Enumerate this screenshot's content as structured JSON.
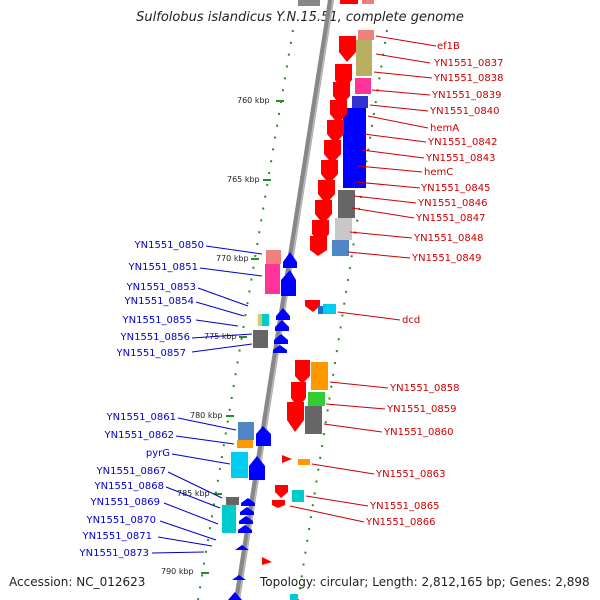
{
  "title": "Sulfolobus islandicus Y.N.15.51, complete genome",
  "footer": {
    "accession": "Accession: NC_012623",
    "topology": "Topology: circular; Length: 2,812,165 bp; Genes: 2,898"
  },
  "colors": {
    "forward_gene": "#ff0000",
    "reverse_gene": "#0000ff",
    "forward_label": "#cc0000",
    "reverse_label": "#0000cc",
    "axis": "#808080",
    "ruler": "#008000"
  },
  "ticks": [
    "760 kbp",
    "765 kbp",
    "770 kbp",
    "775 kbp",
    "780 kbp",
    "785 kbp",
    "790 kbp"
  ],
  "right_labels": [
    "ef1B",
    "YN1551_0837",
    "YN1551_0838",
    "YN1551_0839",
    "YN1551_0840",
    "hemA",
    "YN1551_0842",
    "YN1551_0843",
    "hemC",
    "YN1551_0845",
    "YN1551_0846",
    "YN1551_0847",
    "YN1551_0848",
    "YN1551_0849",
    "dcd",
    "YN1551_0858",
    "YN1551_0859",
    "YN1551_0860",
    "YN1551_0863",
    "YN1551_0865",
    "YN1551_0866"
  ],
  "left_labels": [
    "YN1551_0850",
    "YN1551_0851",
    "YN1551_0853",
    "YN1551_0854",
    "YN1551_0855",
    "YN1551_0856",
    "YN1551_0857",
    "YN1551_0861",
    "YN1551_0862",
    "pyrG",
    "YN1551_0867",
    "YN1551_0868",
    "YN1551_0869",
    "YN1551_0870",
    "YN1551_0871",
    "YN1551_0873"
  ]
}
